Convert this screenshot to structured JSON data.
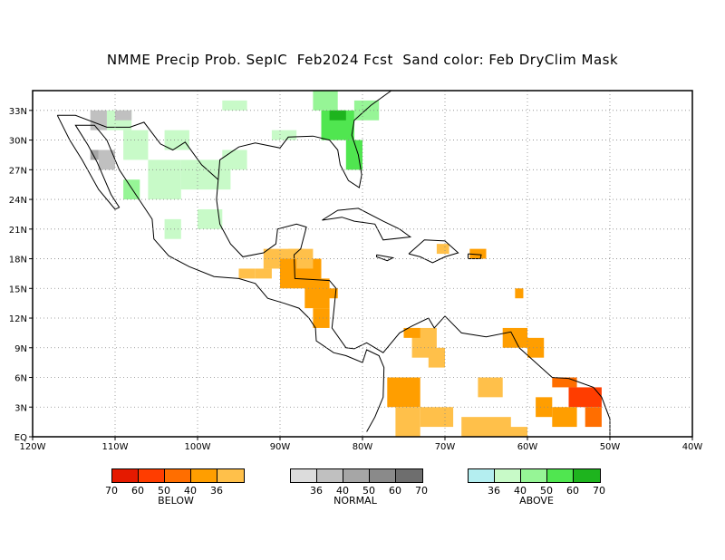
{
  "title": "NMME Precip Prob. SepIC  Feb2024 Fcst  Sand color: Feb DryClim Mask",
  "map": {
    "lon_labels": [
      "120W",
      "110W",
      "100W",
      "90W",
      "80W",
      "70W",
      "60W",
      "50W",
      "40W"
    ],
    "lat_labels": [
      "EQ",
      "3N",
      "6N",
      "9N",
      "12N",
      "15N",
      "18N",
      "21N",
      "24N",
      "27N",
      "30N",
      "33N"
    ],
    "lon_range": [
      -120,
      -40
    ],
    "lat_range": [
      0,
      35
    ],
    "grid": "dotted"
  },
  "legend": {
    "below": {
      "title": "BELOW",
      "ticks": [
        "70",
        "60",
        "50",
        "40",
        "36"
      ],
      "colors": [
        "#e51a00",
        "#ff3d00",
        "#ff6e00",
        "#ff9e00",
        "#ffc04a"
      ]
    },
    "normal": {
      "title": "NORMAL",
      "ticks": [
        "36",
        "40",
        "50",
        "60",
        "70"
      ],
      "colors": [
        "#dcdcdc",
        "#c0c0c0",
        "#a6a6a6",
        "#8a8a8a",
        "#6e6e6e"
      ]
    },
    "above": {
      "title": "ABOVE",
      "ticks": [
        "36",
        "40",
        "50",
        "60",
        "70"
      ],
      "colors": [
        "#b4eef0",
        "#c8fac8",
        "#96f596",
        "#50e650",
        "#1eb41e"
      ]
    }
  }
}
